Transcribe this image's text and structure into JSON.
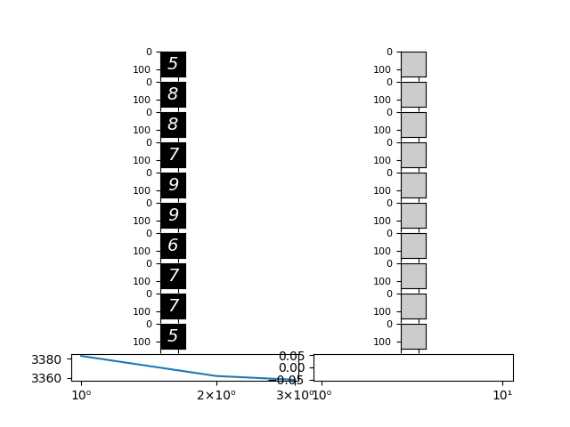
{
  "chart_data": [
    {
      "type": "image",
      "digits": [
        "5",
        "8",
        "8",
        "7",
        "9",
        "9",
        "6",
        "7",
        "7",
        "5"
      ],
      "color_range": [
        0,
        1
      ],
      "xlim": [
        0,
        140
      ],
      "ylim": [
        140,
        0
      ],
      "xticks": [
        0,
        100
      ],
      "yticks": [
        0,
        100
      ],
      "tick_labels": "y"
    },
    {
      "type": "image",
      "pixel_values": [
        0.8,
        0.8,
        0.8,
        0.8,
        0.8,
        0.8,
        0.8,
        0.8,
        0.8,
        0.8
      ],
      "color_range": [
        0,
        1
      ],
      "xlim": [
        0,
        140
      ],
      "ylim": [
        140,
        0
      ],
      "xticks": [
        0,
        100
      ],
      "yticks": [
        0,
        100
      ],
      "tick_labels": "y"
    },
    {
      "type": "line",
      "x": [
        1,
        2,
        3
      ],
      "values": [
        3383,
        3362,
        3358
      ],
      "color": "#1f77b4",
      "log": "x",
      "xlim": [
        0.95,
        3.05
      ],
      "ylim": [
        3357,
        3385
      ],
      "xticks": [
        {
          "value": 1,
          "label": "10⁰"
        },
        {
          "value": 2,
          "label": "2×10⁰"
        },
        {
          "value": 3,
          "label": "3×10⁰"
        }
      ],
      "yticks": [
        3360,
        3380
      ]
    },
    {
      "type": "line",
      "x": [],
      "values": [],
      "log": "x",
      "xlim": [
        0.9,
        11.5
      ],
      "ylim": [
        -0.055,
        0.055
      ],
      "xticks": [
        {
          "value": 1,
          "label": "10⁰"
        },
        {
          "value": 10,
          "label": "10¹"
        }
      ],
      "yticks": [
        {
          "value": -0.05,
          "label": "−0.05"
        },
        {
          "value": 0.0,
          "label": "0.00"
        },
        {
          "value": 0.05,
          "label": "0.05"
        }
      ]
    }
  ]
}
